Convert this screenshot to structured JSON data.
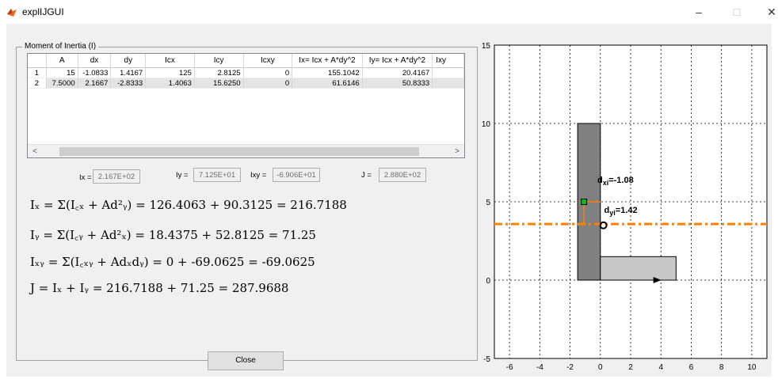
{
  "window": {
    "title": "explIJGUI",
    "minimize": "–",
    "maximize": "□",
    "close": "✕"
  },
  "panel": {
    "title": "Moment of Inertia (I)"
  },
  "table": {
    "headers": [
      "A",
      "dx",
      "dy",
      "Icx",
      "Icy",
      "Icxy",
      "Ix= Icx + A*dy^2",
      "Iy= Icx + A*dy^2",
      "Ixy"
    ],
    "rows": [
      {
        "num": "1",
        "cells": [
          "15",
          "-1.0833",
          "1.4167",
          "125",
          "2.8125",
          "0",
          "155.1042",
          "20.4167",
          ""
        ]
      },
      {
        "num": "2",
        "cells": [
          "7.5000",
          "2.1667",
          "-2.8333",
          "1.4063",
          "15.6250",
          "0",
          "61.6146",
          "50.8333",
          ""
        ]
      }
    ],
    "scroll_left": "<",
    "scroll_right": ">"
  },
  "fields": {
    "ix_label": "Ix =",
    "ix_value": "2.167E+02",
    "iy_label": "Iy =",
    "iy_value": "7.125E+01",
    "ixy_label": "Ixy =",
    "ixy_value": "-6.906E+01",
    "j_label": "J =",
    "j_value": "2.880E+02"
  },
  "equations": {
    "ix": "Iₓ = Σ(I꜀ₓ + Ad²ᵧ) = 126.4063 + 90.3125 = 216.7188",
    "iy": "Iᵧ = Σ(I꜀ᵧ + Ad²ₓ) = 18.4375 + 52.8125 = 71.25",
    "ixy": "Iₓᵧ = Σ(I꜀ₓᵧ + Adₓdᵧ) = 0 + -69.0625 = -69.0625",
    "j": "J = Iₓ + Iᵧ = 216.7188 + 71.25 = 287.9688"
  },
  "buttons": {
    "close": "Close"
  },
  "chart_data": {
    "type": "diagram-plot",
    "xlim": [
      -7,
      11
    ],
    "ylim": [
      -5,
      15
    ],
    "xticks": [
      "-6",
      "-4",
      "-2",
      "0",
      "2",
      "4",
      "6",
      "8",
      "10"
    ],
    "yticks": [
      "-5",
      "0",
      "5",
      "10",
      "15"
    ],
    "grid": true,
    "shapes": [
      {
        "name": "vertical-rect",
        "x": -1.5,
        "y": 0,
        "w": 1.5,
        "h": 10,
        "color": "#808080"
      },
      {
        "name": "horizontal-rect",
        "x": 0,
        "y": 0,
        "w": 5,
        "h": 1.5,
        "color": "#c8c8c8"
      }
    ],
    "centroid_line_y": 3.58,
    "centroid_line_color": "#ff8000",
    "dxi_label": "d",
    "dxi_sub": "xi",
    "dxi_value": "=-1.08",
    "dyi_label": "d",
    "dyi_sub": "yi",
    "dyi_value": "=1.42"
  }
}
